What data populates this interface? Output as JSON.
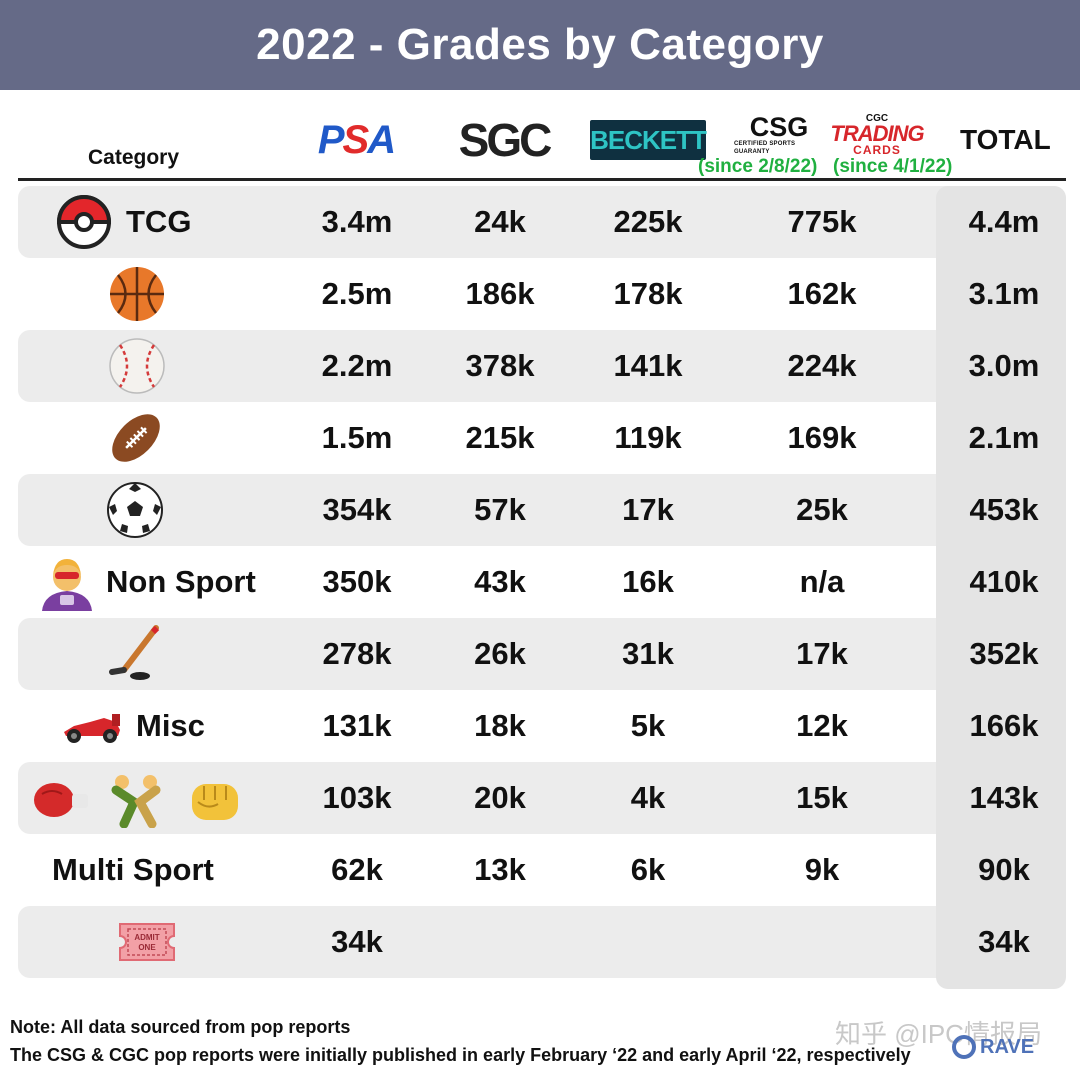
{
  "title": "2022 - Grades by Category",
  "headers": {
    "category": "Category",
    "psa": "PSA",
    "sgc": "SGC",
    "beckett": "BECKETT",
    "csg": "CSG",
    "csg_sub": "CERTIFIED SPORTS GUARANTY",
    "cgc_top": "CGC",
    "cgc_mid": "TRADING",
    "cgc_bot": "CARDS",
    "total": "TOTAL",
    "since_csg": "(since 2/8/22)",
    "since_cgc": "(since 4/1/22)"
  },
  "chart_data": {
    "type": "table",
    "title": "2022 - Grades by Category",
    "columns": [
      "Category",
      "PSA",
      "SGC",
      "BECKETT",
      "CSG / CGC",
      "TOTAL"
    ],
    "rows": [
      {
        "category": "TCG",
        "icon": "pokeball-icon",
        "values": [
          "3.4m",
          "24k",
          "225k",
          "775k",
          "4.4m"
        ]
      },
      {
        "category": "",
        "icon": "basketball-icon",
        "values": [
          "2.5m",
          "186k",
          "178k",
          "162k",
          "3.1m"
        ]
      },
      {
        "category": "",
        "icon": "baseball-icon",
        "values": [
          "2.2m",
          "378k",
          "141k",
          "224k",
          "3.0m"
        ]
      },
      {
        "category": "",
        "icon": "football-icon",
        "values": [
          "1.5m",
          "215k",
          "119k",
          "169k",
          "2.1m"
        ]
      },
      {
        "category": "",
        "icon": "soccer-ball-icon",
        "values": [
          "354k",
          "57k",
          "17k",
          "25k",
          "453k"
        ]
      },
      {
        "category": "Non Sport",
        "icon": "superhero-icon",
        "values": [
          "350k",
          "43k",
          "16k",
          "n/a",
          "410k"
        ]
      },
      {
        "category": "",
        "icon": "hockey-icon",
        "values": [
          "278k",
          "26k",
          "31k",
          "17k",
          "352k"
        ]
      },
      {
        "category": "Misc",
        "icon": "race-car-icon",
        "values": [
          "131k",
          "18k",
          "5k",
          "12k",
          "166k"
        ]
      },
      {
        "category": "",
        "icon": "combat-sports-icon",
        "values": [
          "103k",
          "20k",
          "4k",
          "15k",
          "143k"
        ]
      },
      {
        "category": "Multi Sport",
        "icon": "",
        "values": [
          "62k",
          "13k",
          "6k",
          "9k",
          "90k"
        ]
      },
      {
        "category": "",
        "icon": "ticket-icon",
        "values": [
          "34k",
          "",
          "",
          "",
          "34k"
        ]
      }
    ],
    "ticket_text": "ADMIT ONE"
  },
  "notes": {
    "note1": "Note: All data sourced from pop reports",
    "note2": "The CSG & CGC pop reports were initially published in early February ‘22 and early April ‘22, respectively"
  },
  "watermark": "知乎 @IPC情报局",
  "brand": "RAVE"
}
